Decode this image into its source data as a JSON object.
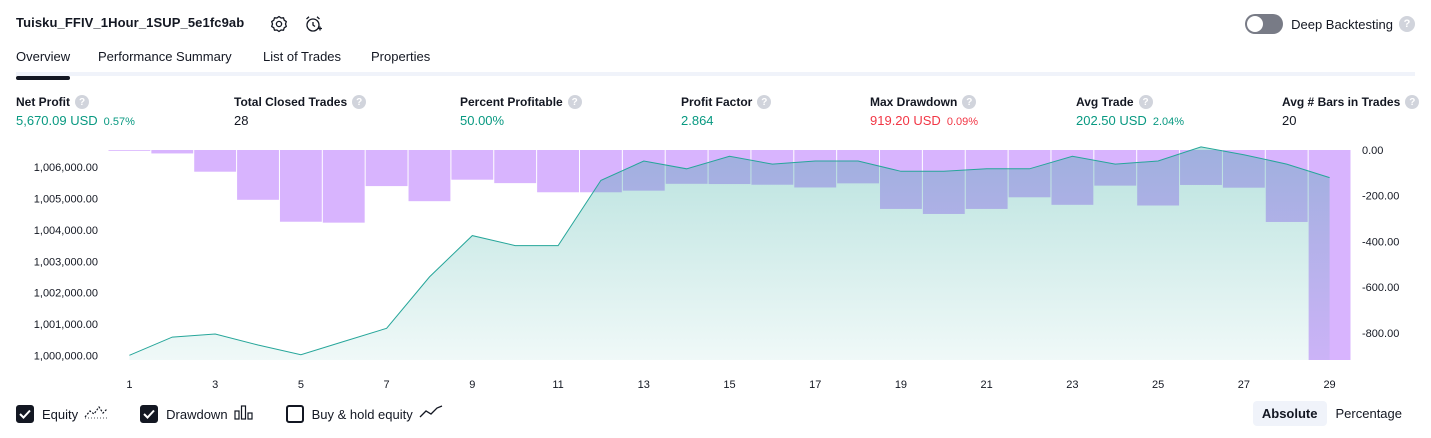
{
  "header": {
    "strategy_title": "Tuisku_FFIV_1Hour_1SUP_5e1fc9ab",
    "settings_icon": "gear-icon",
    "alert_icon": "alarm-clock-add-icon",
    "deep_backtesting_label": "Deep Backtesting",
    "deep_backtesting_enabled": false,
    "help_glyph": "?"
  },
  "tabs": [
    {
      "label": "Overview",
      "active": true
    },
    {
      "label": "Performance Summary",
      "active": false
    },
    {
      "label": "List of Trades",
      "active": false
    },
    {
      "label": "Properties",
      "active": false
    }
  ],
  "metrics": [
    {
      "label": "Net Profit",
      "value": "5,670.09 USD",
      "pct": "0.57%",
      "color": "green"
    },
    {
      "label": "Total Closed Trades",
      "value": "28",
      "pct": "",
      "color": "dark"
    },
    {
      "label": "Percent Profitable",
      "value": "50.00%",
      "pct": "",
      "color": "green"
    },
    {
      "label": "Profit Factor",
      "value": "2.864",
      "pct": "",
      "color": "green"
    },
    {
      "label": "Max Drawdown",
      "value": "919.20 USD",
      "pct": "0.09%",
      "color": "red"
    },
    {
      "label": "Avg Trade",
      "value": "202.50 USD",
      "pct": "2.04%",
      "color": "green"
    },
    {
      "label": "Avg # Bars in Trades",
      "value": "20",
      "pct": "",
      "color": "dark"
    }
  ],
  "chart_data": {
    "type": "line",
    "x": [
      1,
      2,
      3,
      4,
      5,
      6,
      7,
      8,
      9,
      10,
      11,
      12,
      13,
      14,
      15,
      16,
      17,
      18,
      19,
      20,
      21,
      22,
      23,
      24,
      25,
      26,
      27,
      28,
      29
    ],
    "x_tick_labels": [
      "1",
      "3",
      "5",
      "7",
      "9",
      "11",
      "13",
      "15",
      "17",
      "19",
      "21",
      "23",
      "25",
      "27",
      "29"
    ],
    "series": [
      {
        "name": "Equity",
        "type": "area",
        "axis": "left",
        "color": "#26a69a",
        "values": [
          1000000,
          1000580,
          1000680,
          1000330,
          1000020,
          1000440,
          1000860,
          1002500,
          1003820,
          1003500,
          1003500,
          1005580,
          1006200,
          1005950,
          1006350,
          1006100,
          1006200,
          1006200,
          1005870,
          1005870,
          1005950,
          1005950,
          1006350,
          1006100,
          1006200,
          1006650,
          1006400,
          1006100,
          1005670
        ]
      },
      {
        "name": "Drawdown",
        "type": "bar",
        "axis": "right",
        "color": "#d8b4fe",
        "values": [
          0,
          -15,
          -95,
          -218,
          -314,
          -318,
          -158,
          -224,
          -130,
          -145,
          -185,
          -185,
          -178,
          -148,
          -149,
          -152,
          -164,
          -146,
          -258,
          -280,
          -258,
          -207,
          -240,
          -156,
          -243,
          -153,
          -165,
          -315,
          -919.2
        ]
      }
    ],
    "y_left_ticks": [
      "1,000,000.00",
      "1,001,000.00",
      "1,002,000.00",
      "1,003,000.00",
      "1,004,000.00",
      "1,005,000.00",
      "1,006,000.00"
    ],
    "y_left_range": [
      999850,
      1006550
    ],
    "y_right_ticks": [
      "0.00",
      "-200.00",
      "-400.00",
      "-600.00",
      "-800.00"
    ],
    "y_right_range": [
      -919.2,
      0
    ]
  },
  "legend": [
    {
      "label": "Equity",
      "checked": true,
      "icon": "equity-line-icon"
    },
    {
      "label": "Drawdown",
      "checked": true,
      "icon": "drawdown-bars-icon"
    },
    {
      "label": "Buy & hold equity",
      "checked": false,
      "icon": "buy-hold-line-icon"
    }
  ],
  "mode": {
    "absolute_label": "Absolute",
    "percentage_label": "Percentage",
    "selected": "Absolute"
  }
}
